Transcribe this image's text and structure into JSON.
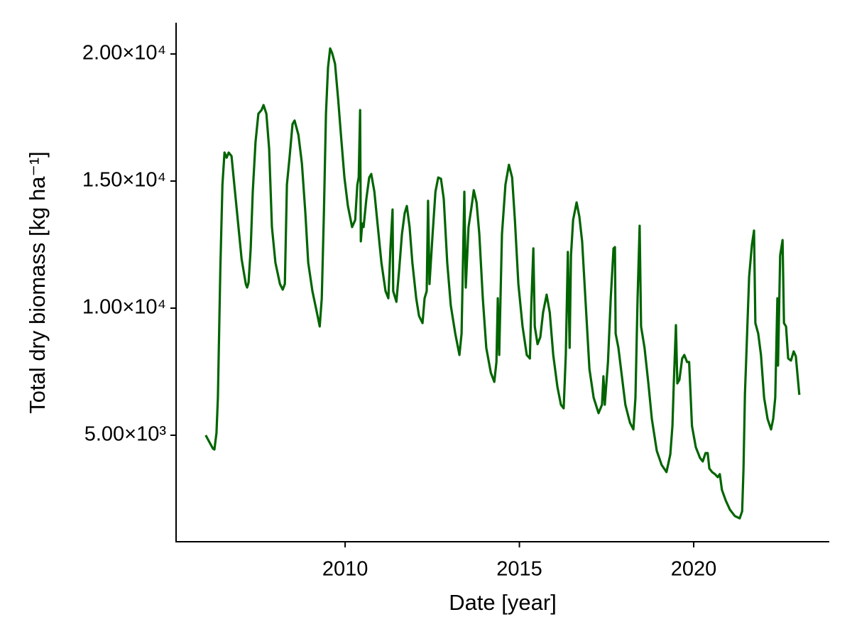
{
  "chart_data": {
    "type": "line",
    "xlabel": "Date [year]",
    "ylabel": "Total dry biomass [kg ha⁻¹]",
    "color": "#006400",
    "xlim": [
      2005.15,
      2023.89
    ],
    "ylim": [
      810,
      21230
    ],
    "xticks": [
      2010,
      2015,
      2020
    ],
    "yticks": [
      {
        "value": 5000,
        "label": "5.00×10³"
      },
      {
        "value": 10000,
        "label": "1.00×10⁴"
      },
      {
        "value": 15000,
        "label": "1.50×10⁴"
      },
      {
        "value": 20000,
        "label": "2.00×10⁴"
      }
    ],
    "x": [
      2006.0,
      2006.21,
      2006.25,
      2006.31,
      2006.35,
      2006.42,
      2006.48,
      2006.54,
      2006.6,
      2006.66,
      2006.74,
      2006.82,
      2006.92,
      2007.03,
      2007.15,
      2007.19,
      2007.23,
      2007.29,
      2007.35,
      2007.43,
      2007.51,
      2007.6,
      2007.66,
      2007.74,
      2007.82,
      2007.9,
      2008.0,
      2008.13,
      2008.21,
      2008.27,
      2008.33,
      2008.41,
      2008.49,
      2008.55,
      2008.66,
      2008.76,
      2008.86,
      2008.94,
      2009.06,
      2009.19,
      2009.27,
      2009.33,
      2009.39,
      2009.45,
      2009.51,
      2009.57,
      2009.63,
      2009.71,
      2009.8,
      2009.88,
      2009.98,
      2010.08,
      2010.2,
      2010.29,
      2010.35,
      2010.39,
      2010.43,
      2010.45,
      2010.49,
      2010.53,
      2010.61,
      2010.69,
      2010.75,
      2010.84,
      2010.94,
      2011.04,
      2011.16,
      2011.24,
      2011.3,
      2011.36,
      2011.38,
      2011.47,
      2011.55,
      2011.63,
      2011.71,
      2011.77,
      2011.85,
      2011.93,
      2012.04,
      2012.12,
      2012.22,
      2012.28,
      2012.34,
      2012.38,
      2012.42,
      2012.51,
      2012.59,
      2012.67,
      2012.75,
      2012.83,
      2012.93,
      2013.03,
      2013.16,
      2013.28,
      2013.34,
      2013.42,
      2013.46,
      2013.54,
      2013.63,
      2013.69,
      2013.77,
      2013.85,
      2013.95,
      2014.05,
      2014.18,
      2014.28,
      2014.34,
      2014.38,
      2014.42,
      2014.5,
      2014.6,
      2014.7,
      2014.79,
      2014.87,
      2014.97,
      2015.09,
      2015.21,
      2015.3,
      2015.34,
      2015.4,
      2015.44,
      2015.52,
      2015.6,
      2015.68,
      2015.78,
      2015.87,
      2015.97,
      2016.09,
      2016.19,
      2016.27,
      2016.33,
      2016.39,
      2016.44,
      2016.48,
      2016.54,
      2016.64,
      2016.72,
      2016.8,
      2016.88,
      2017.01,
      2017.13,
      2017.27,
      2017.37,
      2017.41,
      2017.45,
      2017.54,
      2017.62,
      2017.7,
      2017.74,
      2017.76,
      2017.84,
      2017.94,
      2018.04,
      2018.17,
      2018.27,
      2018.33,
      2018.39,
      2018.45,
      2018.49,
      2018.59,
      2018.7,
      2018.8,
      2018.94,
      2019.08,
      2019.22,
      2019.33,
      2019.39,
      2019.43,
      2019.49,
      2019.53,
      2019.59,
      2019.67,
      2019.73,
      2019.81,
      2019.87,
      2019.95,
      2020.06,
      2020.18,
      2020.26,
      2020.34,
      2020.4,
      2020.45,
      2020.53,
      2020.61,
      2020.69,
      2020.75,
      2020.81,
      2020.92,
      2021.04,
      2021.18,
      2021.32,
      2021.39,
      2021.43,
      2021.47,
      2021.51,
      2021.59,
      2021.67,
      2021.73,
      2021.77,
      2021.85,
      2021.93,
      2022.02,
      2022.12,
      2022.22,
      2022.28,
      2022.34,
      2022.4,
      2022.42,
      2022.48,
      2022.55,
      2022.59,
      2022.65,
      2022.71,
      2022.79,
      2022.87,
      2022.93,
      2023.03
    ],
    "values": [
      5000,
      4470,
      4440,
      5090,
      6480,
      11510,
      14860,
      16120,
      15920,
      16120,
      15980,
      14860,
      13470,
      11930,
      10950,
      10810,
      11010,
      12350,
      14580,
      16540,
      17650,
      17790,
      17990,
      17650,
      16260,
      13190,
      11790,
      10950,
      10730,
      10950,
      14860,
      15980,
      17240,
      17380,
      16820,
      15700,
      13740,
      11790,
      10670,
      9830,
      9280,
      10390,
      13740,
      17650,
      19470,
      20220,
      20030,
      19610,
      18210,
      16820,
      15140,
      14020,
      13190,
      13470,
      14860,
      15140,
      17790,
      12630,
      13330,
      13190,
      14300,
      15140,
      15280,
      14580,
      13190,
      11790,
      10670,
      10390,
      12350,
      13880,
      10670,
      10250,
      11510,
      12910,
      13740,
      14020,
      13190,
      11790,
      10390,
      9690,
      9410,
      10390,
      10670,
      14220,
      10950,
      12910,
      14580,
      15140,
      15090,
      14300,
      11790,
      10110,
      9000,
      8160,
      9000,
      14580,
      10810,
      13190,
      14020,
      14640,
      14160,
      12910,
      10390,
      8440,
      7460,
      7100,
      7880,
      10390,
      8160,
      12910,
      14860,
      15640,
      15140,
      13470,
      10950,
      9280,
      8160,
      8020,
      10110,
      12350,
      9280,
      8580,
      8860,
      9830,
      10530,
      9830,
      8160,
      6900,
      6200,
      6060,
      8160,
      12210,
      8440,
      12070,
      13470,
      14160,
      13600,
      12630,
      10670,
      7600,
      6480,
      5870,
      6200,
      7320,
      6200,
      7880,
      10390,
      12350,
      12400,
      9000,
      8440,
      7320,
      6200,
      5500,
      5230,
      6480,
      10390,
      13240,
      9280,
      8440,
      7040,
      5640,
      4390,
      3830,
      3550,
      4250,
      5370,
      7040,
      9330,
      7040,
      7180,
      8020,
      8160,
      7880,
      7880,
      5370,
      4530,
      4110,
      3970,
      4300,
      4300,
      3690,
      3550,
      3470,
      3350,
      3470,
      2850,
      2430,
      2070,
      1820,
      1730,
      2010,
      3690,
      6620,
      8160,
      11230,
      12490,
      13050,
      9410,
      9000,
      8160,
      6480,
      5640,
      5230,
      5640,
      6480,
      10390,
      7740,
      12070,
      12680,
      9410,
      9280,
      8020,
      7940,
      8300,
      8100,
      6590
    ]
  }
}
